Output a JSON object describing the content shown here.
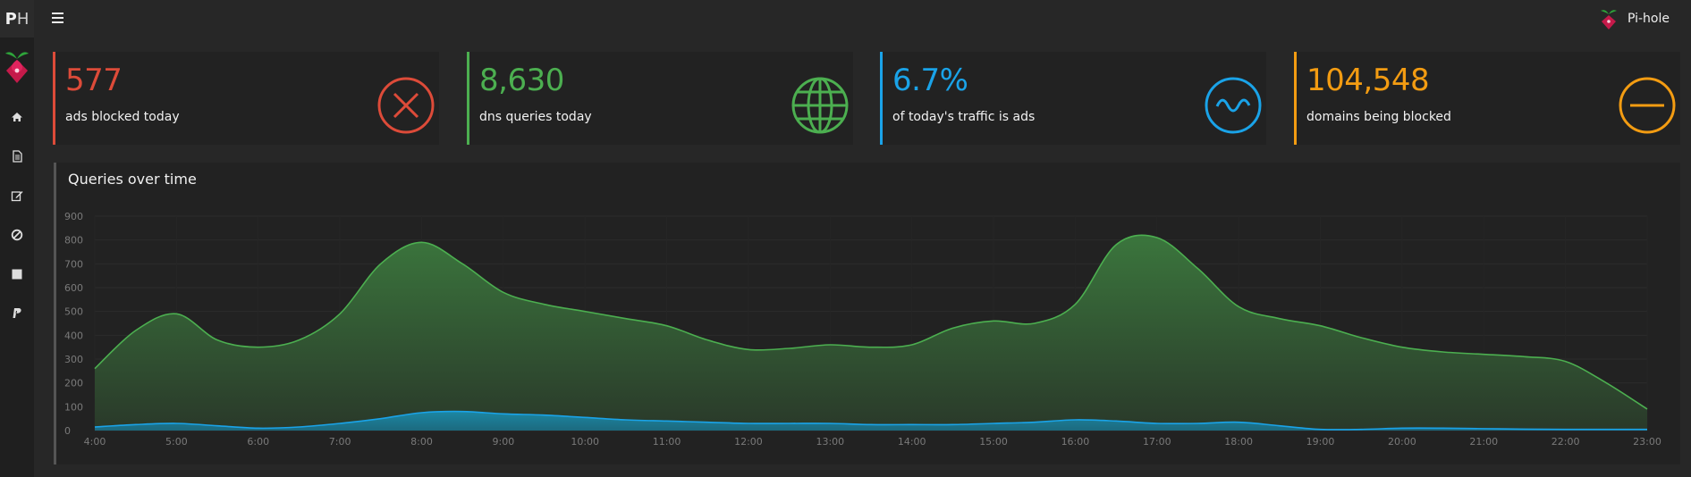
{
  "sidebar": {
    "logo_bold": "P",
    "logo_rest": "H",
    "nav_icons": [
      "home-icon",
      "file-icon",
      "edit-icon",
      "ban-icon",
      "square-icon",
      "paypal-icon"
    ]
  },
  "topbar": {
    "brand_text": "Pi-hole"
  },
  "cards": [
    {
      "value": "577",
      "label": "ads blocked today",
      "color": "#dd4b39",
      "icon": "close-circle-icon"
    },
    {
      "value": "8,630",
      "label": "dns queries today",
      "color": "#4caf50",
      "icon": "globe-icon"
    },
    {
      "value": "6.7%",
      "label": "of today's traffic is ads",
      "color": "#1aa3e8",
      "icon": "wave-circle-icon"
    },
    {
      "value": "104,548",
      "label": "domains being blocked",
      "color": "#f39c12",
      "icon": "minus-circle-icon"
    }
  ],
  "panel": {
    "title": "Queries over time"
  },
  "chart_data": {
    "type": "area",
    "ylim": [
      0,
      900
    ],
    "yticks": [
      "0",
      "100",
      "200",
      "300",
      "400",
      "500",
      "600",
      "700",
      "800",
      "900"
    ],
    "categories": [
      "4:00",
      "5:00",
      "6:00",
      "7:00",
      "8:00",
      "9:00",
      "10:00",
      "11:00",
      "12:00",
      "13:00",
      "14:00",
      "15:00",
      "16:00",
      "17:00",
      "18:00",
      "19:00",
      "20:00",
      "21:00",
      "22:00",
      "23:00"
    ],
    "x": [
      4.0,
      4.5,
      5.0,
      5.5,
      6.0,
      6.5,
      7.0,
      7.5,
      8.0,
      8.5,
      9.0,
      9.5,
      10.0,
      10.5,
      11.0,
      11.5,
      12.0,
      12.5,
      13.0,
      13.5,
      14.0,
      14.5,
      15.0,
      15.5,
      16.0,
      16.5,
      17.0,
      17.5,
      18.0,
      18.5,
      19.0,
      19.5,
      20.0,
      20.5,
      21.0,
      21.5,
      22.0,
      22.5,
      23.0
    ],
    "series": [
      {
        "color": "#4caf50",
        "values": [
          260,
          420,
          490,
          380,
          350,
          380,
          490,
          700,
          790,
          700,
          580,
          530,
          500,
          470,
          440,
          380,
          340,
          345,
          360,
          350,
          360,
          430,
          460,
          450,
          530,
          780,
          810,
          680,
          520,
          470,
          440,
          390,
          350,
          330,
          320,
          310,
          290,
          200,
          90
        ]
      },
      {
        "color": "#1aa3e8",
        "values": [
          15,
          25,
          30,
          20,
          10,
          15,
          30,
          50,
          75,
          80,
          70,
          65,
          55,
          45,
          40,
          35,
          30,
          30,
          30,
          25,
          25,
          25,
          30,
          35,
          45,
          40,
          30,
          30,
          35,
          20,
          5,
          5,
          10,
          10,
          8,
          6,
          5,
          5,
          5
        ]
      }
    ]
  }
}
